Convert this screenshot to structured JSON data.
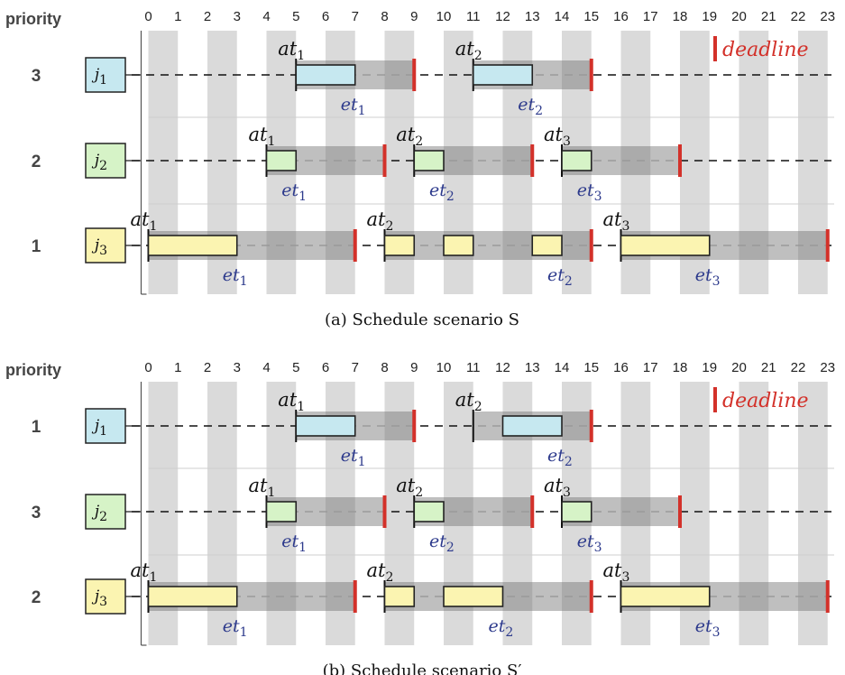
{
  "header": "priority",
  "ticks": [
    "0",
    "1",
    "2",
    "3",
    "4",
    "5",
    "6",
    "7",
    "8",
    "9",
    "10",
    "11",
    "12",
    "13",
    "14",
    "15",
    "16",
    "17",
    "18",
    "19",
    "20",
    "21",
    "22",
    "23"
  ],
  "legend": {
    "label": "deadline"
  },
  "colors": {
    "j1": "#c6e8f0",
    "j2": "#d6f3c7",
    "j3": "#fbf4b1",
    "deadline": "#d3312a",
    "et": "#2d3a8c",
    "stripe": "#dadada",
    "window": "#b4b4b4",
    "window_dark": "#9a9a9a"
  },
  "panels": [
    {
      "caption": "(a) Schedule scenario S",
      "rows": [
        {
          "priority": "3",
          "job": "j",
          "job_sub": "1",
          "color_key": "j1",
          "windows": [
            {
              "at_sub": "1",
              "et_sub": "1",
              "arrival": 5,
              "deadline": 9,
              "exec": [
                [
                  5,
                  7
                ]
              ],
              "et_pos": 7
            },
            {
              "at_sub": "2",
              "et_sub": "2",
              "arrival": 11,
              "deadline": 15,
              "exec": [
                [
                  11,
                  13
                ]
              ],
              "et_pos": 13
            }
          ]
        },
        {
          "priority": "2",
          "job": "j",
          "job_sub": "2",
          "color_key": "j2",
          "windows": [
            {
              "at_sub": "1",
              "et_sub": "1",
              "arrival": 4,
              "deadline": 8,
              "exec": [
                [
                  4,
                  5
                ]
              ],
              "et_pos": 5
            },
            {
              "at_sub": "2",
              "et_sub": "2",
              "arrival": 9,
              "deadline": 13,
              "exec": [
                [
                  9,
                  10
                ]
              ],
              "et_pos": 10
            },
            {
              "at_sub": "3",
              "et_sub": "3",
              "arrival": 14,
              "deadline": 18,
              "exec": [
                [
                  14,
                  15
                ]
              ],
              "et_pos": 15
            }
          ]
        },
        {
          "priority": "1",
          "job": "j",
          "job_sub": "3",
          "color_key": "j3",
          "windows": [
            {
              "at_sub": "1",
              "et_sub": "1",
              "arrival": 0,
              "deadline": 7,
              "exec": [
                [
                  0,
                  3
                ]
              ],
              "et_pos": 3
            },
            {
              "at_sub": "2",
              "et_sub": "2",
              "arrival": 8,
              "deadline": 15,
              "exec": [
                [
                  8,
                  9
                ],
                [
                  10,
                  11
                ],
                [
                  13,
                  14
                ]
              ],
              "et_pos": 14
            },
            {
              "at_sub": "3",
              "et_sub": "3",
              "arrival": 16,
              "deadline": 23,
              "exec": [
                [
                  16,
                  19
                ]
              ],
              "et_pos": 19
            }
          ]
        }
      ]
    },
    {
      "caption": "(b) Schedule scenario S′",
      "rows": [
        {
          "priority": "1",
          "job": "j",
          "job_sub": "1",
          "color_key": "j1",
          "windows": [
            {
              "at_sub": "1",
              "et_sub": "1",
              "arrival": 5,
              "deadline": 9,
              "exec": [
                [
                  5,
                  7
                ]
              ],
              "et_pos": 7
            },
            {
              "at_sub": "2",
              "et_sub": "2",
              "arrival": 11,
              "deadline": 15,
              "exec": [
                [
                  12,
                  14
                ]
              ],
              "et_pos": 14
            }
          ]
        },
        {
          "priority": "3",
          "job": "j",
          "job_sub": "2",
          "color_key": "j2",
          "windows": [
            {
              "at_sub": "1",
              "et_sub": "1",
              "arrival": 4,
              "deadline": 8,
              "exec": [
                [
                  4,
                  5
                ]
              ],
              "et_pos": 5
            },
            {
              "at_sub": "2",
              "et_sub": "2",
              "arrival": 9,
              "deadline": 13,
              "exec": [
                [
                  9,
                  10
                ]
              ],
              "et_pos": 10
            },
            {
              "at_sub": "3",
              "et_sub": "3",
              "arrival": 14,
              "deadline": 18,
              "exec": [
                [
                  14,
                  15
                ]
              ],
              "et_pos": 15
            }
          ]
        },
        {
          "priority": "2",
          "job": "j",
          "job_sub": "3",
          "color_key": "j3",
          "windows": [
            {
              "at_sub": "1",
              "et_sub": "1",
              "arrival": 0,
              "deadline": 7,
              "exec": [
                [
                  0,
                  3
                ]
              ],
              "et_pos": 3
            },
            {
              "at_sub": "2",
              "et_sub": "2",
              "arrival": 8,
              "deadline": 15,
              "exec": [
                [
                  8,
                  9
                ],
                [
                  10,
                  12
                ]
              ],
              "et_pos": 12
            },
            {
              "at_sub": "3",
              "et_sub": "3",
              "arrival": 16,
              "deadline": 23,
              "exec": [
                [
                  16,
                  19
                ]
              ],
              "et_pos": 19
            }
          ]
        }
      ]
    }
  ]
}
